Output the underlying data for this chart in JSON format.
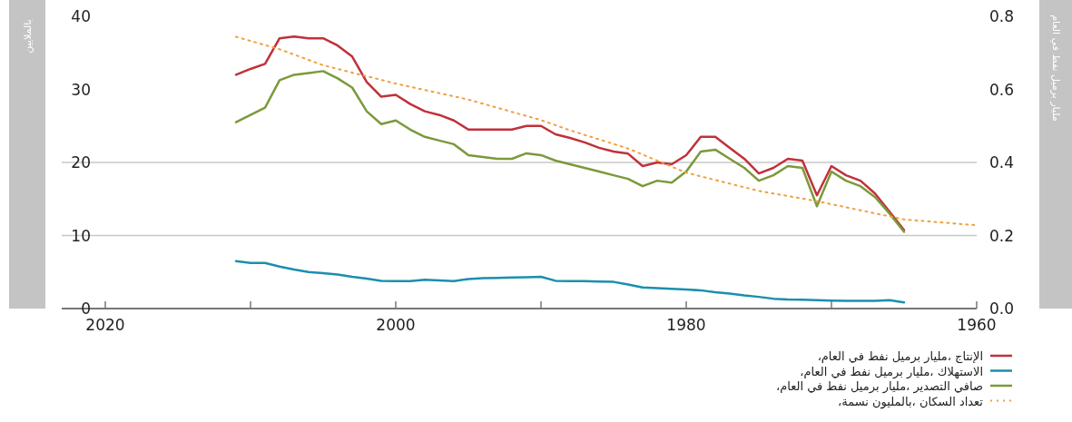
{
  "chart_data": {
    "type": "line",
    "ylabel": "بالملايين",
    "y2label": "مليار برميل نفط في العام",
    "xlim": [
      2023,
      1960
    ],
    "xticks": [
      2020,
      {
        "value": 2010,
        "label": null
      },
      2000,
      {
        "value": 1990,
        "label": null
      },
      1980,
      {
        "value": 1970,
        "label": null
      },
      1960
    ],
    "ylim": [
      0,
      40
    ],
    "yticks": [
      0,
      10,
      20,
      30,
      40
    ],
    "y2lim": [
      0,
      0.8
    ],
    "y2ticks": [
      {
        "value": 0,
        "label": "0.0"
      },
      0.2,
      0.4,
      0.6,
      0.8
    ],
    "ref_lines": [
      {
        "axis": "y",
        "value": 10,
        "color": "#c8c8c8"
      },
      {
        "axis": "y",
        "value": 20,
        "color": "#c8c8c8"
      }
    ],
    "legend": "bottom right",
    "line_style": "solid",
    "marker": "none",
    "series": [
      {
        "name": "الإنتاج ،مليار برميل نفط في العام،",
        "color": "#c0313a",
        "axis": "y2",
        "x": [
          2011,
          2010,
          2009,
          2008,
          2007,
          2006,
          2005,
          2004,
          2003,
          2002,
          2001,
          2000,
          1999,
          1998,
          1997,
          1996,
          1995,
          1994,
          1993,
          1992,
          1991,
          1990,
          1989,
          1988,
          1987,
          1986,
          1985,
          1984,
          1983,
          1982,
          1981,
          1980,
          1979,
          1978,
          1977,
          1976,
          1975,
          1974,
          1973,
          1972,
          1971,
          1970,
          1969,
          1968,
          1967,
          1966,
          1965
        ],
        "values": [
          0.64,
          0.656,
          0.67,
          0.74,
          0.745,
          0.74,
          0.74,
          0.72,
          0.69,
          0.62,
          0.58,
          0.585,
          0.56,
          0.54,
          0.53,
          0.515,
          0.49,
          0.49,
          0.49,
          0.49,
          0.5,
          0.5,
          0.477,
          0.467,
          0.455,
          0.44,
          0.43,
          0.424,
          0.39,
          0.4,
          0.395,
          0.42,
          0.47,
          0.47,
          0.44,
          0.41,
          0.37,
          0.385,
          0.41,
          0.405,
          0.31,
          0.39,
          0.365,
          0.35,
          0.315,
          0.265,
          0.215
        ]
      },
      {
        "name": "الاستهلاك ،مليار برميل نفط في العام،",
        "color": "#1a8fae",
        "axis": "y2",
        "x": [
          2011,
          2010,
          2009,
          2008,
          2007,
          2006,
          2005,
          2004,
          2003,
          2002,
          2001,
          2000,
          1999,
          1998,
          1997,
          1996,
          1995,
          1994,
          1993,
          1992,
          1991,
          1990,
          1989,
          1988,
          1987,
          1986,
          1985,
          1984,
          1983,
          1982,
          1981,
          1980,
          1979,
          1978,
          1977,
          1976,
          1975,
          1974,
          1973,
          1972,
          1971,
          1970,
          1969,
          1968,
          1967,
          1966,
          1965
        ],
        "values": [
          0.13,
          0.125,
          0.125,
          0.115,
          0.107,
          0.1,
          0.097,
          0.093,
          0.087,
          0.082,
          0.076,
          0.075,
          0.075,
          0.079,
          0.077,
          0.075,
          0.081,
          0.083,
          0.084,
          0.085,
          0.086,
          0.087,
          0.076,
          0.075,
          0.075,
          0.074,
          0.073,
          0.066,
          0.058,
          0.056,
          0.054,
          0.052,
          0.05,
          0.045,
          0.041,
          0.036,
          0.032,
          0.027,
          0.025,
          0.024,
          0.023,
          0.022,
          0.021,
          0.021,
          0.021,
          0.023,
          0.017
        ]
      },
      {
        "name": "صافي التصدير ،مليار برميل نفط في العام،",
        "color": "#7a9a3a",
        "axis": "y2",
        "x": [
          2011,
          2010,
          2009,
          2008,
          2007,
          2006,
          2005,
          2004,
          2003,
          2002,
          2001,
          2000,
          1999,
          1998,
          1997,
          1996,
          1995,
          1994,
          1993,
          1992,
          1991,
          1990,
          1989,
          1988,
          1987,
          1986,
          1985,
          1984,
          1983,
          1982,
          1981,
          1980,
          1979,
          1978,
          1977,
          1976,
          1975,
          1974,
          1973,
          1972,
          1971,
          1970,
          1969,
          1968,
          1967,
          1966,
          1965
        ],
        "values": [
          0.51,
          0.53,
          0.55,
          0.625,
          0.64,
          0.645,
          0.65,
          0.63,
          0.605,
          0.54,
          0.505,
          0.515,
          0.49,
          0.47,
          0.46,
          0.45,
          0.42,
          0.415,
          0.41,
          0.41,
          0.425,
          0.42,
          0.405,
          0.395,
          0.385,
          0.375,
          0.365,
          0.355,
          0.335,
          0.35,
          0.345,
          0.375,
          0.43,
          0.435,
          0.41,
          0.385,
          0.35,
          0.365,
          0.39,
          0.385,
          0.28,
          0.375,
          0.35,
          0.335,
          0.305,
          0.26,
          0.21
        ]
      },
      {
        "name": "تعداد السكان ،بالمليون نسمة،",
        "color": "#f0a040",
        "line_style": "dotted",
        "x": [
          2011,
          2008,
          2005,
          2000,
          1995,
          1990,
          1988,
          1984,
          1980,
          1975,
          1971,
          1965,
          1960
        ],
        "values": [
          37.2,
          35.5,
          33.3,
          30.8,
          28.6,
          25.8,
          24.4,
          21.9,
          18.6,
          16.1,
          14.7,
          12.2,
          11.4
        ]
      }
    ]
  }
}
